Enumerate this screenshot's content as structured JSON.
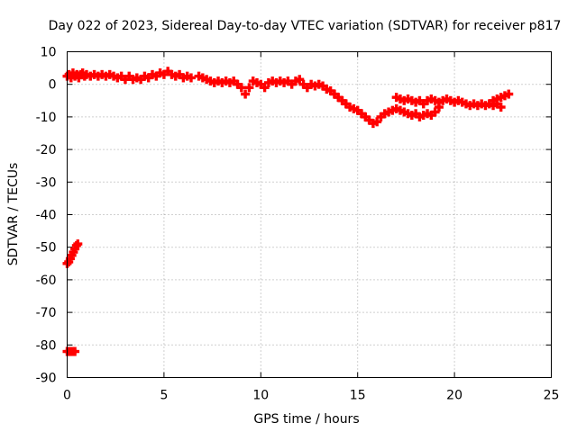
{
  "chart_data": {
    "type": "scatter",
    "title": "Day 022 of 2023, Sidereal Day-to-day VTEC variation (SDTVAR) for receiver p817",
    "xlabel": "GPS time / hours",
    "ylabel": "SDTVAR / TECUs",
    "xlim": [
      0,
      25
    ],
    "ylim": [
      -90,
      10
    ],
    "xticks": [
      "0",
      "5",
      "10",
      "15",
      "20",
      "25"
    ],
    "yticks": [
      "10",
      "0",
      "-10",
      "-20",
      "-30",
      "-40",
      "-50",
      "-60",
      "-70",
      "-80",
      "-90"
    ],
    "grid": true,
    "marker": "plus",
    "color": "#ff0000",
    "series": [
      {
        "name": "SDTVAR",
        "points": [
          [
            0.0,
            -82
          ],
          [
            0.1,
            -82
          ],
          [
            0.2,
            -82
          ],
          [
            0.3,
            -82
          ],
          [
            0.4,
            -82
          ],
          [
            0.0,
            -55
          ],
          [
            0.08,
            -54.5
          ],
          [
            0.16,
            -53.5
          ],
          [
            0.24,
            -52.5
          ],
          [
            0.32,
            -51.5
          ],
          [
            0.4,
            -50.5
          ],
          [
            0.48,
            -49.5
          ],
          [
            0.55,
            -49
          ],
          [
            0.0,
            2.5
          ],
          [
            0.1,
            3
          ],
          [
            0.2,
            2
          ],
          [
            0.3,
            3.5
          ],
          [
            0.4,
            2.5
          ],
          [
            0.5,
            3
          ],
          [
            0.6,
            2
          ],
          [
            0.7,
            3
          ],
          [
            0.8,
            3.5
          ],
          [
            0.9,
            2.5
          ],
          [
            1.0,
            3
          ],
          [
            1.2,
            2.5
          ],
          [
            1.4,
            3
          ],
          [
            1.6,
            2.5
          ],
          [
            1.8,
            3
          ],
          [
            2.0,
            2.5
          ],
          [
            2.2,
            3
          ],
          [
            2.4,
            2.5
          ],
          [
            2.6,
            2
          ],
          [
            2.8,
            2.5
          ],
          [
            3.0,
            1.5
          ],
          [
            3.2,
            2.5
          ],
          [
            3.4,
            1.5
          ],
          [
            3.6,
            2
          ],
          [
            3.8,
            1.5
          ],
          [
            4.0,
            2.5
          ],
          [
            4.2,
            2
          ],
          [
            4.4,
            3
          ],
          [
            4.6,
            2.5
          ],
          [
            4.8,
            3.5
          ],
          [
            5.0,
            3
          ],
          [
            5.2,
            4
          ],
          [
            5.4,
            3
          ],
          [
            5.6,
            2.5
          ],
          [
            5.8,
            3
          ],
          [
            6.0,
            2
          ],
          [
            6.2,
            2.5
          ],
          [
            6.4,
            2
          ],
          [
            6.8,
            2.5
          ],
          [
            7.0,
            2
          ],
          [
            7.2,
            1.5
          ],
          [
            7.4,
            1
          ],
          [
            7.6,
            0.5
          ],
          [
            7.8,
            1
          ],
          [
            8.0,
            0.5
          ],
          [
            8.2,
            1
          ],
          [
            8.4,
            0.5
          ],
          [
            8.6,
            1
          ],
          [
            8.8,
            0
          ],
          [
            9.0,
            -1
          ],
          [
            9.2,
            -3
          ],
          [
            9.4,
            -1
          ],
          [
            9.6,
            1
          ],
          [
            9.8,
            0.5
          ],
          [
            10.0,
            0
          ],
          [
            10.2,
            -1
          ],
          [
            10.4,
            0.5
          ],
          [
            10.6,
            1
          ],
          [
            10.8,
            0.5
          ],
          [
            11.0,
            1
          ],
          [
            11.2,
            0.5
          ],
          [
            11.4,
            1
          ],
          [
            11.6,
            0
          ],
          [
            11.8,
            1
          ],
          [
            12.0,
            1.5
          ],
          [
            12.2,
            0
          ],
          [
            12.4,
            -1
          ],
          [
            12.6,
            0
          ],
          [
            12.8,
            -0.5
          ],
          [
            13.0,
            0
          ],
          [
            13.2,
            -0.5
          ],
          [
            13.4,
            -1.5
          ],
          [
            13.6,
            -2
          ],
          [
            13.8,
            -3
          ],
          [
            14.0,
            -4
          ],
          [
            14.2,
            -5
          ],
          [
            14.4,
            -6
          ],
          [
            14.6,
            -7
          ],
          [
            14.8,
            -7.5
          ],
          [
            15.0,
            -8
          ],
          [
            15.2,
            -9
          ],
          [
            15.4,
            -10
          ],
          [
            15.6,
            -11
          ],
          [
            15.8,
            -12
          ],
          [
            16.0,
            -11.5
          ],
          [
            16.2,
            -10
          ],
          [
            16.4,
            -9
          ],
          [
            16.6,
            -8.5
          ],
          [
            16.8,
            -8
          ],
          [
            17.0,
            -7.5
          ],
          [
            17.2,
            -8
          ],
          [
            17.4,
            -8.5
          ],
          [
            17.6,
            -9
          ],
          [
            17.8,
            -9.5
          ],
          [
            18.0,
            -9
          ],
          [
            18.2,
            -10
          ],
          [
            18.4,
            -9.5
          ],
          [
            18.6,
            -9
          ],
          [
            18.8,
            -9.5
          ],
          [
            19.0,
            -8.5
          ],
          [
            19.2,
            -7
          ],
          [
            17.0,
            -4
          ],
          [
            17.2,
            -4.5
          ],
          [
            17.4,
            -5
          ],
          [
            17.6,
            -4.5
          ],
          [
            17.8,
            -5
          ],
          [
            18.0,
            -5.5
          ],
          [
            18.2,
            -5
          ],
          [
            18.4,
            -6
          ],
          [
            18.6,
            -5
          ],
          [
            18.8,
            -4.5
          ],
          [
            19.0,
            -5
          ],
          [
            19.2,
            -5.5
          ],
          [
            19.4,
            -5
          ],
          [
            19.6,
            -4.5
          ],
          [
            19.8,
            -5
          ],
          [
            20.0,
            -5.5
          ],
          [
            20.2,
            -5
          ],
          [
            20.4,
            -5.5
          ],
          [
            20.6,
            -6
          ],
          [
            20.8,
            -6.5
          ],
          [
            21.0,
            -6
          ],
          [
            21.2,
            -6.5
          ],
          [
            21.4,
            -6
          ],
          [
            21.6,
            -6.5
          ],
          [
            21.8,
            -6
          ],
          [
            22.0,
            -6.5
          ],
          [
            22.2,
            -6
          ],
          [
            22.4,
            -7
          ],
          [
            22.0,
            -5
          ],
          [
            22.2,
            -4.5
          ],
          [
            22.4,
            -4
          ],
          [
            22.6,
            -3.5
          ],
          [
            22.8,
            -3
          ]
        ]
      }
    ]
  }
}
